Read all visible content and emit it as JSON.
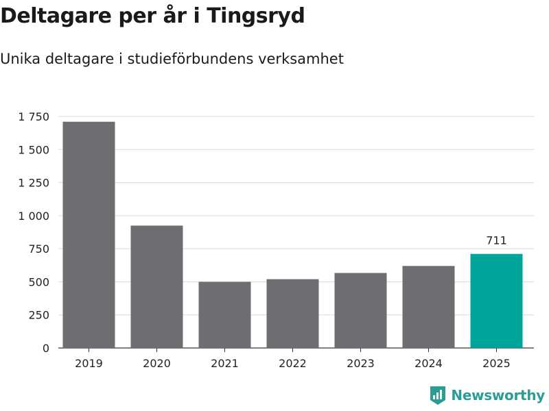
{
  "header": {
    "title": "Deltagare per år i Tingsryd",
    "subtitle": "Unika deltagare i studieförbundens verksamhet"
  },
  "branding": {
    "name": "Newsworthy",
    "icon": "newsworthy-logo-icon",
    "color": "#2c9d94"
  },
  "chart_data": {
    "type": "bar",
    "categories": [
      "2019",
      "2020",
      "2021",
      "2022",
      "2023",
      "2024",
      "2025"
    ],
    "values": [
      1710,
      925,
      500,
      520,
      567,
      620,
      711
    ],
    "ylim": [
      0,
      1750
    ],
    "yticks": [
      0,
      250,
      500,
      750,
      1000,
      1250,
      1500,
      1750
    ],
    "ytick_labels": [
      "0",
      "250",
      "500",
      "750",
      "1 000",
      "1 250",
      "1 500",
      "1 750"
    ],
    "data_labels": [
      null,
      null,
      null,
      null,
      null,
      null,
      "711"
    ],
    "colors": {
      "default": "#6e6d72",
      "highlight": "#00a49b"
    },
    "highlight_index": 6,
    "grid": true,
    "legend": "none"
  }
}
